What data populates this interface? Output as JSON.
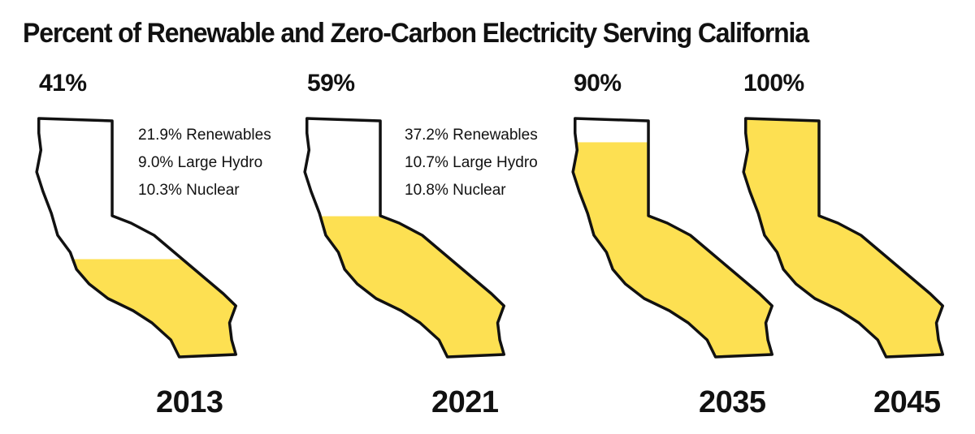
{
  "chart_data": {
    "type": "bar",
    "title": "Percent of Renewable and Zero-Carbon Electricity Serving California",
    "categories": [
      "2013",
      "2021",
      "2035",
      "2045"
    ],
    "values": [
      41,
      59,
      90,
      100
    ],
    "value_labels": [
      "41%",
      "59%",
      "90%",
      "100%"
    ],
    "ylim": [
      0,
      100
    ],
    "fill_color": "#FDE052",
    "outline_color": "#111111",
    "breakdowns": [
      {
        "year": "2013",
        "items": [
          "21.9% Renewables",
          "9.0% Large Hydro",
          "10.3% Nuclear"
        ]
      },
      {
        "year": "2021",
        "items": [
          "37.2% Renewables",
          "10.7% Large Hydro",
          "10.8% Nuclear"
        ]
      }
    ]
  }
}
